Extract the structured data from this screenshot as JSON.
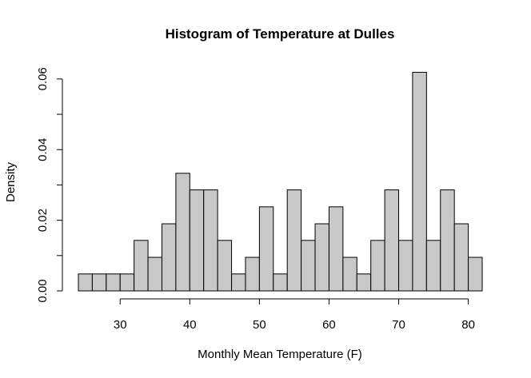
{
  "chart_data": {
    "type": "bar",
    "title": "Histogram of Temperature at Dulles",
    "xlabel": "Monthly Mean Temperature (F)",
    "ylabel": "Density",
    "bin_width": 2,
    "bins": [
      {
        "x0": 24,
        "x1": 26,
        "density": 0.0048
      },
      {
        "x0": 26,
        "x1": 28,
        "density": 0.0048
      },
      {
        "x0": 28,
        "x1": 30,
        "density": 0.0048
      },
      {
        "x0": 30,
        "x1": 32,
        "density": 0.0048
      },
      {
        "x0": 32,
        "x1": 34,
        "density": 0.0143
      },
      {
        "x0": 34,
        "x1": 36,
        "density": 0.0095
      },
      {
        "x0": 36,
        "x1": 38,
        "density": 0.019
      },
      {
        "x0": 38,
        "x1": 40,
        "density": 0.0333
      },
      {
        "x0": 40,
        "x1": 42,
        "density": 0.0286
      },
      {
        "x0": 42,
        "x1": 44,
        "density": 0.0286
      },
      {
        "x0": 44,
        "x1": 46,
        "density": 0.0143
      },
      {
        "x0": 46,
        "x1": 48,
        "density": 0.0048
      },
      {
        "x0": 48,
        "x1": 50,
        "density": 0.0095
      },
      {
        "x0": 50,
        "x1": 52,
        "density": 0.0238
      },
      {
        "x0": 52,
        "x1": 54,
        "density": 0.0048
      },
      {
        "x0": 54,
        "x1": 56,
        "density": 0.0286
      },
      {
        "x0": 56,
        "x1": 58,
        "density": 0.0143
      },
      {
        "x0": 58,
        "x1": 60,
        "density": 0.019
      },
      {
        "x0": 60,
        "x1": 62,
        "density": 0.0238
      },
      {
        "x0": 62,
        "x1": 64,
        "density": 0.0095
      },
      {
        "x0": 64,
        "x1": 66,
        "density": 0.0048
      },
      {
        "x0": 66,
        "x1": 68,
        "density": 0.0143
      },
      {
        "x0": 68,
        "x1": 70,
        "density": 0.0286
      },
      {
        "x0": 70,
        "x1": 72,
        "density": 0.0143
      },
      {
        "x0": 72,
        "x1": 74,
        "density": 0.0619
      },
      {
        "x0": 74,
        "x1": 76,
        "density": 0.0143
      },
      {
        "x0": 76,
        "x1": 78,
        "density": 0.0286
      },
      {
        "x0": 78,
        "x1": 80,
        "density": 0.019
      },
      {
        "x0": 80,
        "x1": 82,
        "density": 0.0095
      }
    ],
    "x_ticks": [
      30,
      40,
      50,
      60,
      70,
      80
    ],
    "x_tick_labels": [
      "30",
      "40",
      "50",
      "60",
      "70",
      "80"
    ],
    "y_ticks": [
      0.0,
      0.01,
      0.02,
      0.03,
      0.04,
      0.05,
      0.06
    ],
    "y_tick_labels": [
      "0.00",
      "",
      "0.02",
      "",
      "0.04",
      "",
      "0.06"
    ],
    "xlim": [
      24,
      82
    ],
    "ylim": [
      0,
      0.062
    ],
    "grid": false,
    "bar_fill": "#c8c8c8",
    "bar_stroke": "#000000"
  }
}
